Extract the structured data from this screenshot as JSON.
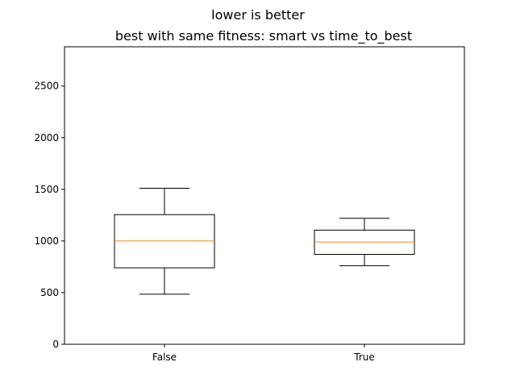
{
  "chart_data": {
    "type": "box",
    "suptitle": "lower is better",
    "title": "best with same fitness: smart vs time_to_best",
    "xlabel": "",
    "ylabel": "",
    "categories": [
      "False",
      "True"
    ],
    "boxes": [
      {
        "category": "False",
        "whisker_low": 485,
        "q1": 740,
        "median": 1000,
        "q3": 1255,
        "whisker_high": 1510
      },
      {
        "category": "True",
        "whisker_low": 760,
        "q1": 870,
        "median": 990,
        "q3": 1105,
        "whisker_high": 1220
      }
    ],
    "ylim": [
      0,
      2880
    ],
    "yticks": [
      0,
      500,
      1000,
      1500,
      2000,
      2500
    ],
    "grid": false,
    "colors": {
      "box": "#000000",
      "median": "#ff7f0e",
      "background": "#ffffff"
    }
  }
}
